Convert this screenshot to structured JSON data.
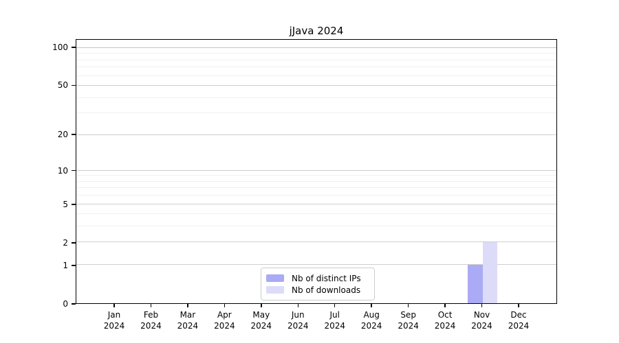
{
  "chart_data": {
    "type": "bar",
    "title": "jJava 2024",
    "categories": [
      "Jan",
      "Feb",
      "Mar",
      "Apr",
      "May",
      "Jun",
      "Jul",
      "Aug",
      "Sep",
      "Oct",
      "Nov",
      "Dec"
    ],
    "category_year": "2024",
    "series": [
      {
        "name": "Nb of distinct IPs",
        "color": "#aaaaf5",
        "values": [
          0,
          0,
          0,
          0,
          0,
          0,
          0,
          0,
          0,
          0,
          1,
          0
        ]
      },
      {
        "name": "Nb of downloads",
        "color": "#dcdcf9",
        "values": [
          0,
          0,
          0,
          0,
          0,
          0,
          0,
          0,
          0,
          0,
          2,
          0
        ]
      }
    ],
    "xlabel": "",
    "ylabel": "",
    "yscale": "log1p",
    "ylim": [
      0,
      116
    ],
    "ytick_labels": [
      0,
      1,
      2,
      5,
      10,
      20,
      50,
      100
    ],
    "minor_gridlines": [
      3,
      4,
      6,
      7,
      8,
      9,
      30,
      40,
      60,
      70,
      80,
      90
    ],
    "grid": "horizontal",
    "legend_position": "bottom-center"
  },
  "colors": {
    "spine": "#000000",
    "major_grid": "#cecece",
    "top_grid": "#c4c4c4",
    "minor_grid": "#f0f0f0",
    "legend_border": "#cccccc",
    "background": "#ffffff"
  }
}
